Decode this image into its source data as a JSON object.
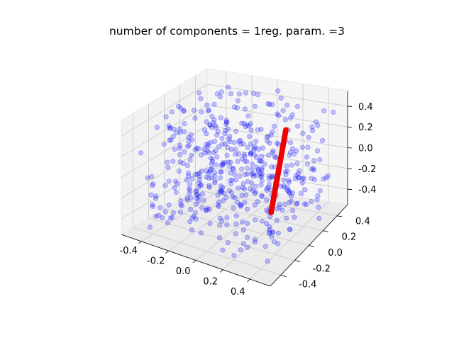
{
  "chart_data": {
    "type": "scatter3d",
    "title": "number of components = 1reg. param. =3",
    "xlim": [
      -0.55,
      0.55
    ],
    "ylim": [
      -0.55,
      0.55
    ],
    "zlim": [
      -0.55,
      0.55
    ],
    "x_ticks": [
      "-0.4",
      "-0.2",
      "0.0",
      "0.2",
      "0.4"
    ],
    "y_ticks": [
      "-0.4",
      "-0.2",
      "0.0",
      "0.2",
      "0.4"
    ],
    "z_ticks": [
      "-0.4",
      "-0.2",
      "0.0",
      "0.2",
      "0.4"
    ],
    "grid": true,
    "series": [
      {
        "marker": "circle",
        "color": "#0000ff",
        "alpha": 0.22,
        "count": 500,
        "distribution": "uniform",
        "range": [
          -0.5,
          0.5
        ]
      },
      {
        "marker": "circle",
        "color": "#ff0000",
        "alpha": 1.0,
        "count": 50,
        "line_start": [
          0.14,
          0.22,
          -0.5
        ],
        "line_end": [
          0.22,
          0.28,
          0.28
        ]
      }
    ]
  }
}
